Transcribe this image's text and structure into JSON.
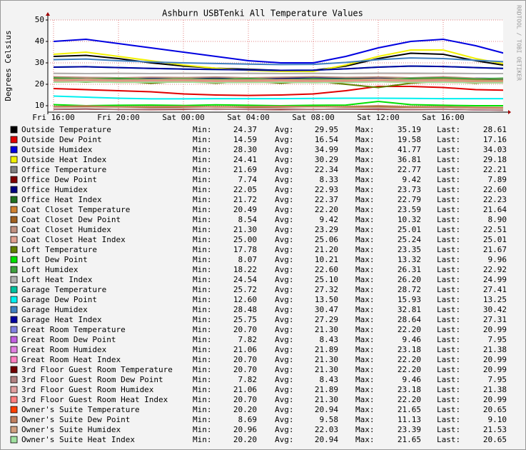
{
  "chart_data": {
    "type": "line",
    "title": "Ashburn USBTenki All Temperature Values",
    "y_label": "Degrees Celsius",
    "watermark": "RRDTOOL / TOBI OETIKER",
    "categories": [
      "Fri 16:00",
      null,
      "Fri 20:00",
      null,
      "Sat 00:00",
      null,
      "Sat 04:00",
      null,
      "Sat 08:00",
      null,
      "Sat 12:00",
      null,
      "Sat 16:00",
      null,
      null
    ],
    "ylim": [
      7,
      50
    ],
    "yticks": [
      10,
      20,
      30,
      40,
      50
    ],
    "grid": true,
    "stat_labels": [
      "Min:",
      "Avg:",
      "Max:",
      "Last:"
    ],
    "series": [
      {
        "name": "Outside Temperature",
        "color": "#000000",
        "min": "24.37",
        "avg": "29.95",
        "max": "35.19",
        "last": "28.61",
        "values": [
          33,
          33.5,
          32,
          30,
          28.5,
          27.5,
          27,
          26.5,
          26.5,
          28.5,
          32,
          34.5,
          34,
          31,
          28.6
        ]
      },
      {
        "name": "Outside Dew Point",
        "color": "#e00000",
        "min": "14.59",
        "avg": "16.54",
        "max": "19.58",
        "last": "17.16",
        "values": [
          18,
          17.5,
          17,
          16.5,
          15.5,
          15,
          14.8,
          15,
          15.5,
          17,
          19,
          19,
          18.5,
          17.5,
          17.2
        ]
      },
      {
        "name": "Outside Humidex",
        "color": "#0000e0",
        "min": "28.30",
        "avg": "34.99",
        "max": "41.77",
        "last": "34.03",
        "values": [
          40,
          41,
          39,
          37,
          35,
          33,
          31,
          30,
          30,
          33,
          37,
          40,
          41,
          38,
          34
        ]
      },
      {
        "name": "Outside Heat Index",
        "color": "#f0f000",
        "min": "24.41",
        "avg": "30.29",
        "max": "36.81",
        "last": "29.18",
        "values": [
          34,
          35,
          33,
          31,
          29,
          27.5,
          26.5,
          26,
          26,
          29,
          33,
          36,
          36,
          32,
          29.2
        ]
      },
      {
        "name": "Office Temperature",
        "color": "#808080",
        "min": "21.69",
        "avg": "22.34",
        "max": "22.77",
        "last": "22.21",
        "values": [
          22.4,
          22.5,
          22.4,
          22.3,
          22.3,
          22.4,
          22.3,
          22.2,
          22.3,
          22.4,
          22.5,
          22.4,
          22.3,
          22.3,
          22.2
        ]
      },
      {
        "name": "Office Dew Point",
        "color": "#800000",
        "min": "7.74",
        "avg": "8.33",
        "max": "9.42",
        "last": "7.89",
        "values": [
          8.3,
          8.4,
          8.3,
          8.2,
          8.3,
          8.4,
          8.3,
          8.2,
          8.3,
          8.4,
          8.3,
          8.2,
          8.3,
          8.1,
          7.9
        ]
      },
      {
        "name": "Office Humidex",
        "color": "#000080",
        "min": "22.05",
        "avg": "22.93",
        "max": "23.73",
        "last": "22.60",
        "values": [
          23.0,
          23.1,
          23.0,
          22.9,
          22.9,
          23.0,
          22.9,
          22.8,
          22.9,
          23.0,
          23.1,
          23.0,
          22.9,
          22.8,
          22.6
        ]
      },
      {
        "name": "Office Heat Index",
        "color": "#207020",
        "min": "21.72",
        "avg": "22.37",
        "max": "22.79",
        "last": "22.23",
        "values": [
          22.4,
          22.5,
          22.4,
          22.3,
          22.3,
          22.4,
          22.3,
          22.2,
          22.3,
          22.4,
          22.5,
          22.4,
          22.3,
          22.3,
          22.2
        ]
      },
      {
        "name": "Coat Closet Temperature",
        "color": "#d08030",
        "min": "20.49",
        "avg": "22.20",
        "max": "23.59",
        "last": "21.64",
        "values": [
          22.5,
          22.3,
          22.0,
          22.2,
          22.1,
          22.3,
          22.0,
          22.2,
          22.4,
          22.1,
          22.3,
          22.0,
          22.4,
          21.9,
          21.6
        ]
      },
      {
        "name": "Coat Closet Dew Point",
        "color": "#a06020",
        "min": "8.54",
        "avg": "9.42",
        "max": "10.32",
        "last": "8.90",
        "values": [
          9.5,
          9.6,
          9.4,
          9.3,
          9.4,
          9.5,
          9.3,
          9.4,
          9.6,
          9.4,
          9.5,
          9.3,
          9.4,
          9.1,
          8.9
        ]
      },
      {
        "name": "Coat Closet Humidex",
        "color": "#c09080",
        "min": "21.30",
        "avg": "23.29",
        "max": "25.01",
        "last": "22.51",
        "values": [
          23.5,
          23.2,
          23.0,
          23.3,
          23.1,
          23.4,
          23.0,
          23.3,
          23.6,
          23.2,
          23.4,
          23.0,
          23.5,
          22.8,
          22.5
        ]
      },
      {
        "name": "Coat Closet Heat Index",
        "color": "#e0a090",
        "min": "25.00",
        "avg": "25.06",
        "max": "25.24",
        "last": "25.01",
        "values": [
          25.1,
          25.0,
          25.1,
          25.0,
          25.1,
          25.0,
          25.1,
          25.0,
          25.1,
          25.0,
          25.1,
          25.0,
          25.1,
          25.0,
          25.0
        ]
      },
      {
        "name": "Loft Temperature",
        "color": "#608000",
        "min": "17.78",
        "avg": "21.20",
        "max": "23.35",
        "last": "21.67",
        "values": [
          21.5,
          21.0,
          21.5,
          20.5,
          21.5,
          20.5,
          21.5,
          20.5,
          21.5,
          20.0,
          18.5,
          20.5,
          21.5,
          20.5,
          21.7
        ]
      },
      {
        "name": "Loft Dew Point",
        "color": "#00e000",
        "min": "8.07",
        "avg": "10.21",
        "max": "13.32",
        "last": "9.96",
        "values": [
          10.5,
          10.0,
          10.2,
          10.3,
          10.1,
          10.4,
          10.2,
          10.0,
          10.2,
          10.3,
          12.0,
          10.5,
          10.2,
          10.0,
          10.0
        ]
      },
      {
        "name": "Loft Humidex",
        "color": "#40a040",
        "min": "18.22",
        "avg": "22.60",
        "max": "26.31",
        "last": "22.92",
        "values": [
          23,
          22.5,
          22.8,
          22.3,
          22.6,
          22.2,
          22.7,
          22.1,
          22.6,
          22.3,
          22,
          22.8,
          23,
          22.5,
          22.9
        ]
      },
      {
        "name": "Loft Heat Index",
        "color": "#b0b0b0",
        "min": "24.54",
        "avg": "25.10",
        "max": "26.20",
        "last": "24.99",
        "values": [
          25.1,
          25.0,
          25.1,
          25.0,
          25.1,
          25.0,
          25.1,
          25.0,
          25.1,
          25.0,
          25.2,
          25.2,
          25.1,
          25.0,
          25.0
        ]
      },
      {
        "name": "Garage Temperature",
        "color": "#00c0a0",
        "min": "25.72",
        "avg": "27.32",
        "max": "28.72",
        "last": "27.41",
        "values": [
          28,
          28.2,
          27.8,
          27.4,
          27.1,
          26.9,
          26.7,
          26.5,
          26.6,
          27.2,
          28.0,
          28.5,
          28.3,
          27.8,
          27.4
        ]
      },
      {
        "name": "Garage Dew Point",
        "color": "#00f0f0",
        "min": "12.60",
        "avg": "13.50",
        "max": "15.93",
        "last": "13.25",
        "values": [
          14.5,
          14,
          13.5,
          13.2,
          13.2,
          13.3,
          13.3,
          13.3,
          13.4,
          13.5,
          13.5,
          13.4,
          13.3,
          13.3,
          13.3
        ]
      },
      {
        "name": "Garage Humidex",
        "color": "#4080c0",
        "min": "28.48",
        "avg": "30.47",
        "max": "32.81",
        "last": "30.42",
        "values": [
          31.5,
          31.8,
          31.0,
          30.4,
          30.0,
          29.7,
          29.4,
          29.2,
          29.3,
          30.2,
          31.5,
          32.3,
          32.0,
          31.2,
          30.4
        ]
      },
      {
        "name": "Garage Heat Index",
        "color": "#0000a0",
        "min": "25.75",
        "avg": "27.29",
        "max": "28.64",
        "last": "27.31",
        "values": [
          28,
          28.2,
          27.8,
          27.4,
          27.1,
          26.9,
          26.7,
          26.5,
          26.6,
          27.2,
          28.0,
          28.5,
          28.3,
          27.8,
          27.3
        ]
      },
      {
        "name": "Great Room Temperature",
        "color": "#8080e0",
        "min": "20.70",
        "avg": "21.30",
        "max": "22.20",
        "last": "20.99",
        "values": [
          21.3,
          21.5,
          21.2,
          21.3,
          21.4,
          21.2,
          21.3,
          21.4,
          21.2,
          21.3,
          21.5,
          21.2,
          21.3,
          21.1,
          21.0
        ]
      },
      {
        "name": "Great Room Dew Point",
        "color": "#c060e0",
        "min": "7.82",
        "avg": "8.43",
        "max": "9.46",
        "last": "7.95",
        "values": [
          8.4,
          8.6,
          8.3,
          8.4,
          8.5,
          8.3,
          8.4,
          8.5,
          8.3,
          8.4,
          8.6,
          8.3,
          8.4,
          8.1,
          8.0
        ]
      },
      {
        "name": "Great Room Humidex",
        "color": "#e080e0",
        "min": "21.06",
        "avg": "21.89",
        "max": "23.18",
        "last": "21.38",
        "values": [
          21.9,
          22.2,
          21.8,
          21.9,
          22.0,
          21.8,
          21.9,
          22.0,
          21.8,
          21.9,
          22.2,
          21.8,
          21.9,
          21.5,
          21.4
        ]
      },
      {
        "name": "Great Room Heat Index",
        "color": "#ff80c0",
        "min": "20.70",
        "avg": "21.30",
        "max": "22.20",
        "last": "20.99",
        "values": [
          21.3,
          21.5,
          21.2,
          21.3,
          21.4,
          21.2,
          21.3,
          21.4,
          21.2,
          21.3,
          21.5,
          21.2,
          21.3,
          21.1,
          21.0
        ]
      },
      {
        "name": "3rd Floor Guest Room Temperature",
        "color": "#700000",
        "min": "20.70",
        "avg": "21.30",
        "max": "22.20",
        "last": "20.99",
        "values": [
          21.3,
          21.5,
          21.2,
          21.3,
          21.4,
          21.2,
          21.3,
          21.4,
          21.2,
          21.3,
          21.5,
          21.2,
          21.3,
          21.1,
          21.0
        ]
      },
      {
        "name": "3rd Floor Guest Room Dew Point",
        "color": "#b08080",
        "min": "7.82",
        "avg": "8.43",
        "max": "9.46",
        "last": "7.95",
        "values": [
          8.4,
          8.6,
          8.3,
          8.4,
          8.5,
          8.3,
          8.4,
          8.5,
          8.3,
          8.4,
          8.6,
          8.3,
          8.4,
          8.1,
          8.0
        ]
      },
      {
        "name": "3rd Floor Guest Room Humidex",
        "color": "#e0a0a0",
        "min": "21.06",
        "avg": "21.89",
        "max": "23.18",
        "last": "21.38",
        "values": [
          21.9,
          22.2,
          21.8,
          21.9,
          22.0,
          21.8,
          21.9,
          22.0,
          21.8,
          21.9,
          22.2,
          21.8,
          21.9,
          21.5,
          21.4
        ]
      },
      {
        "name": "3rd Floor Guest Room Heat Index",
        "color": "#ff8080",
        "min": "20.70",
        "avg": "21.30",
        "max": "22.20",
        "last": "20.99",
        "values": [
          21.3,
          21.5,
          21.2,
          21.3,
          21.4,
          21.2,
          21.3,
          21.4,
          21.2,
          21.3,
          21.5,
          21.2,
          21.3,
          21.1,
          21.0
        ]
      },
      {
        "name": "Owner's Suite Temperature",
        "color": "#ff4000",
        "min": "20.20",
        "avg": "20.94",
        "max": "21.65",
        "last": "20.65",
        "values": [
          21,
          21.2,
          20.9,
          21.0,
          21.1,
          20.8,
          20.9,
          21.0,
          20.8,
          20.9,
          21.2,
          20.9,
          21.0,
          20.7,
          20.7
        ]
      },
      {
        "name": "Owner's Suite Dew Point",
        "color": "#c08060",
        "min": "8.69",
        "avg": "9.58",
        "max": "11.13",
        "last": "9.10",
        "values": [
          9.6,
          9.9,
          9.5,
          9.6,
          9.7,
          9.4,
          9.6,
          9.7,
          9.5,
          9.6,
          10,
          9.5,
          9.6,
          9.2,
          9.1
        ]
      },
      {
        "name": "Owner's Suite Humidex",
        "color": "#d0a080",
        "min": "20.96",
        "avg": "22.03",
        "max": "23.39",
        "last": "21.53",
        "values": [
          22.1,
          22.4,
          22.0,
          22.1,
          22.2,
          21.9,
          22.0,
          22.1,
          21.9,
          22.0,
          22.4,
          22.0,
          22.1,
          21.6,
          21.5
        ]
      },
      {
        "name": "Owner's Suite Heat Index",
        "color": "#a0e0a0",
        "min": "20.20",
        "avg": "20.94",
        "max": "21.65",
        "last": "20.65",
        "values": [
          21,
          21.2,
          20.9,
          21.0,
          21.1,
          20.8,
          20.9,
          21.0,
          20.8,
          20.9,
          21.2,
          20.9,
          21.0,
          20.7,
          20.7
        ]
      }
    ]
  }
}
